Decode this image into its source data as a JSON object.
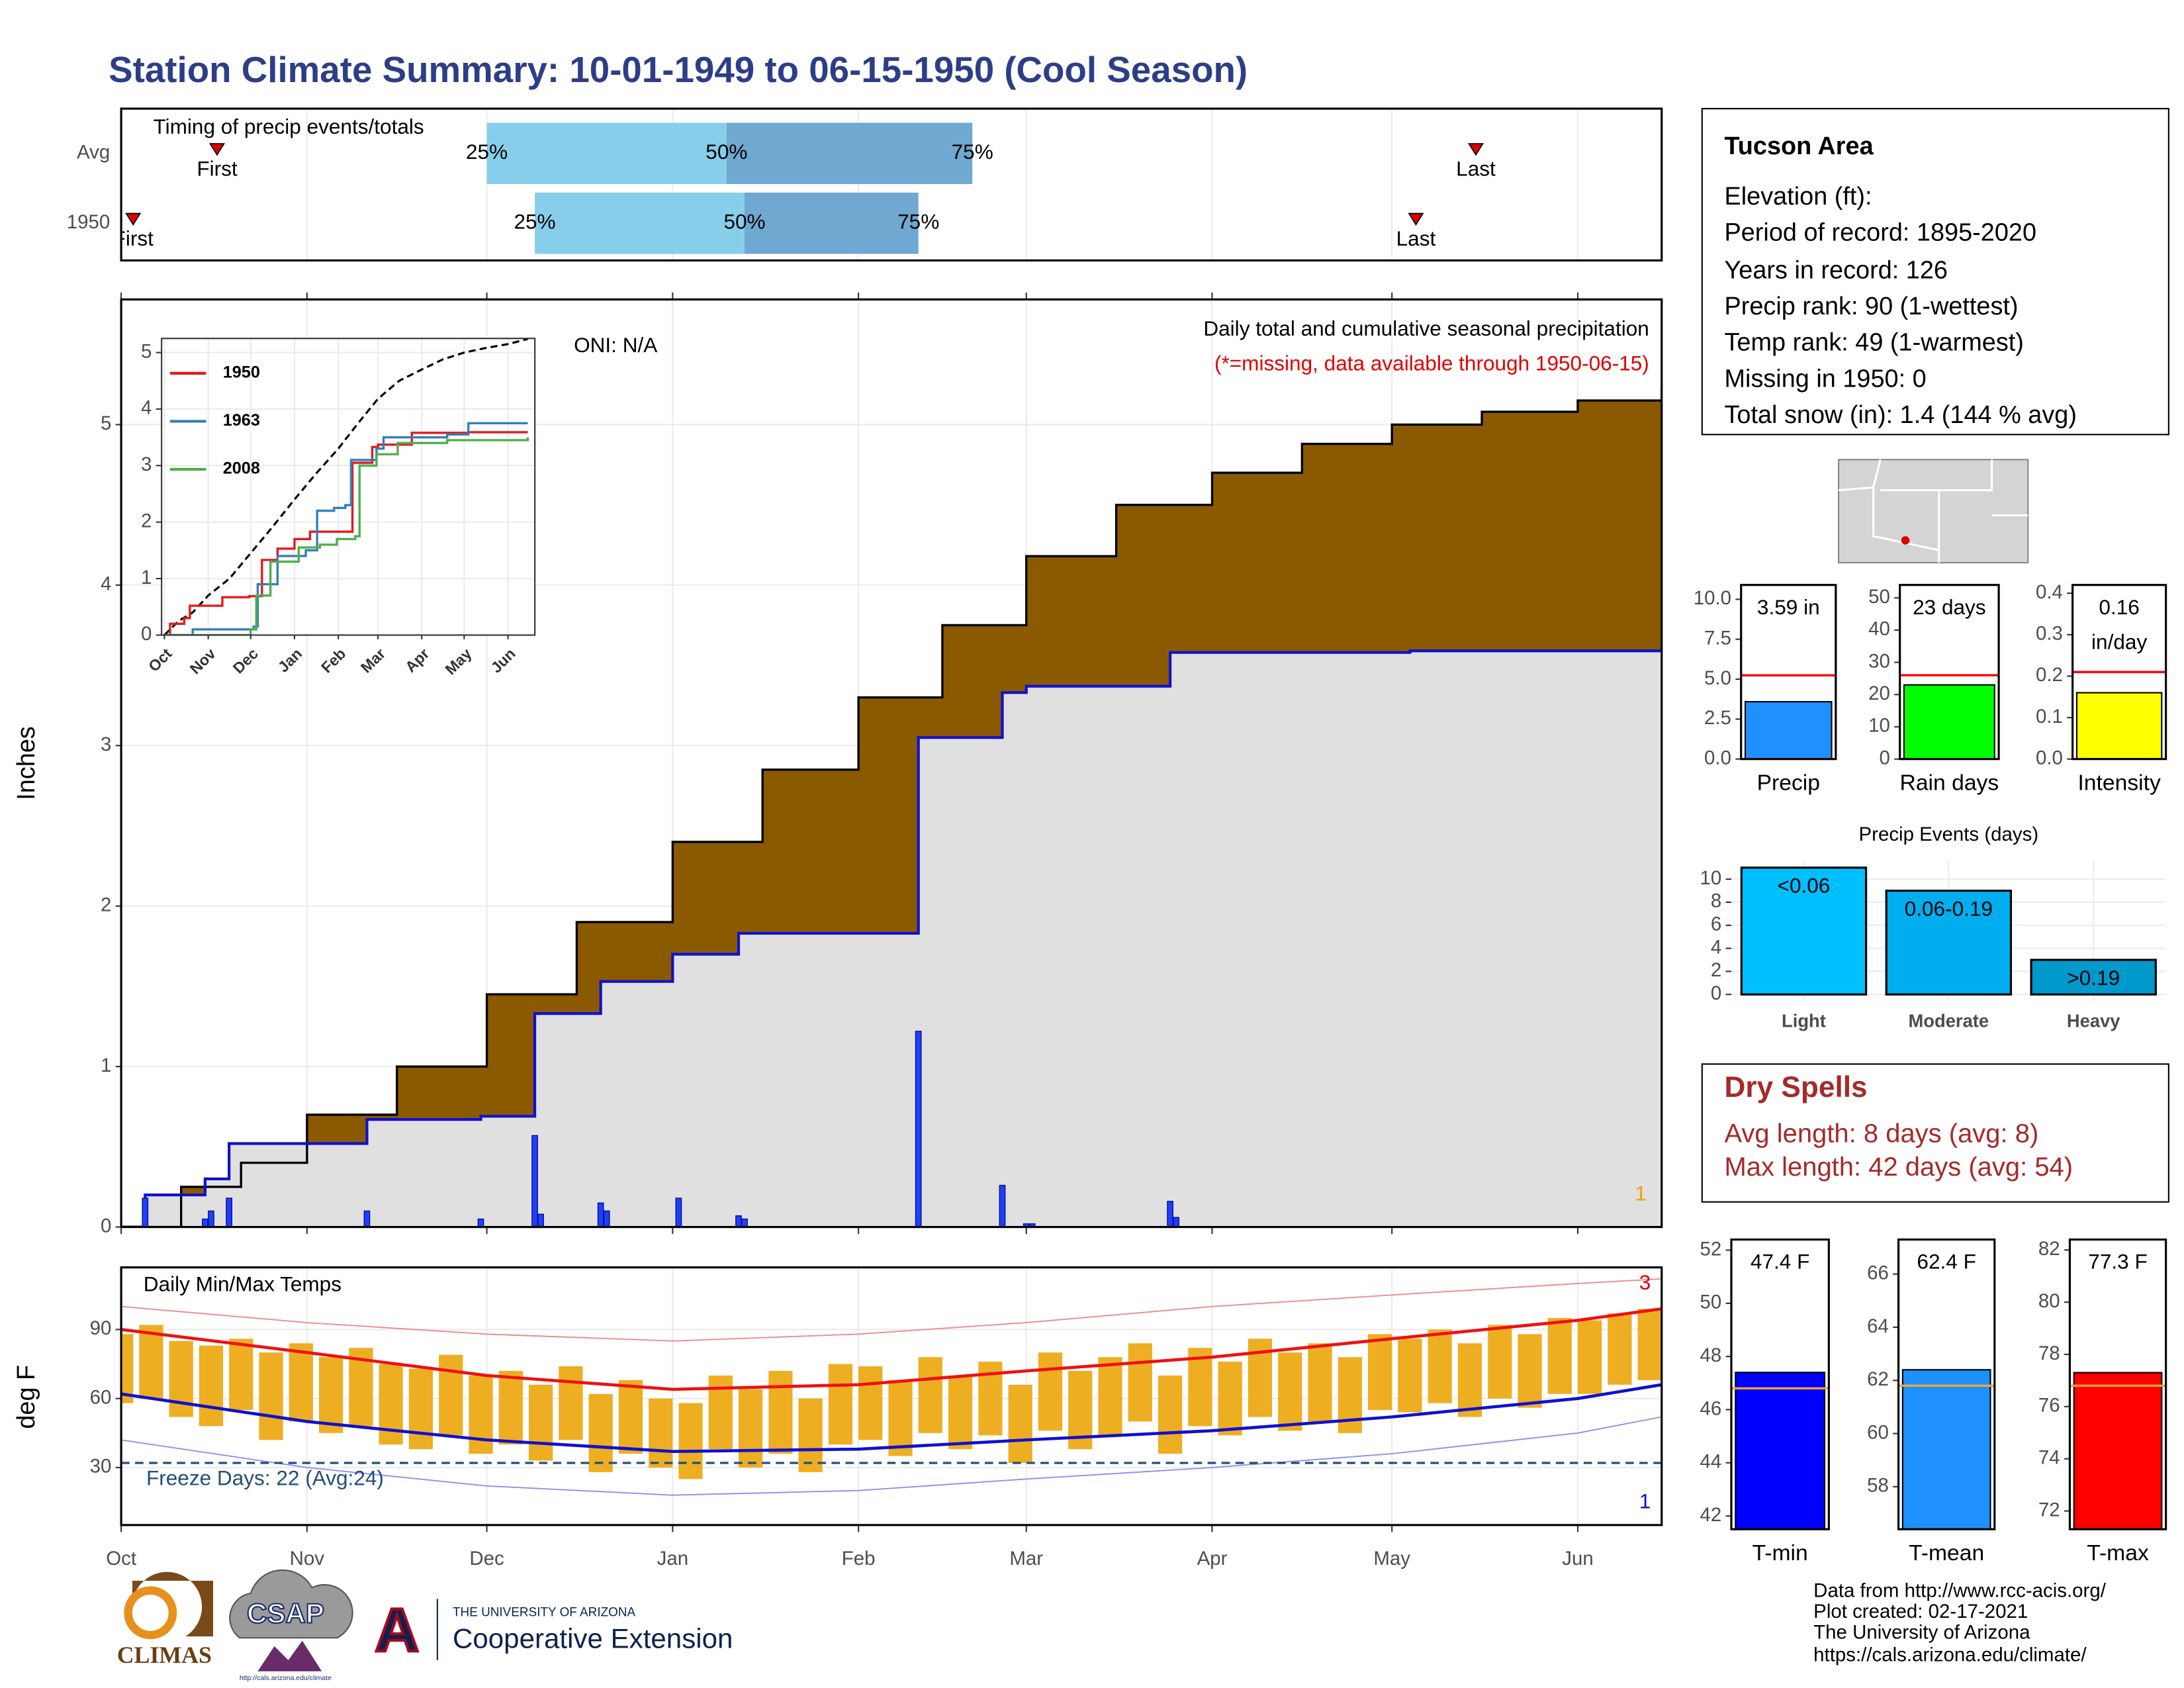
{
  "header": {
    "title": "Station Climate Summary: 10-01-1949 to 06-15-1950 (Cool Season)"
  },
  "info": {
    "title": "Tucson Area",
    "lines": [
      "Elevation (ft):",
      "Period of record: 1895-2020",
      "Years in record: 126",
      "Precip rank: 90 (1-wettest)",
      "Temp rank: 49 (1-warmest)",
      "Missing in 1950: 0",
      "Total snow (in): 1.4 (144 % avg)"
    ]
  },
  "dry_spells": {
    "title": "Dry Spells",
    "lines": [
      "Avg length: 8 days (avg: 8)",
      "Max length: 42 days (avg: 54)"
    ]
  },
  "footer": {
    "lines": [
      "Data from http://www.rcc-acis.org/",
      "Plot created: 02-17-2021",
      "The University of Arizona",
      "https://cals.arizona.edu/climate/"
    ],
    "logos": [
      "CLIMAS",
      "CSAP",
      "http://cals.arizona.edu/climate",
      "A",
      "THE UNIVERSITY OF ARIZONA",
      "Cooperative Extension"
    ]
  },
  "chart_data": [
    {
      "type": "timing",
      "title": "Timing of precip events/totals",
      "quantile_labels": [
        "25%",
        "50%",
        "75%"
      ],
      "colors": [
        "#87ceeb",
        "#6fa8d0"
      ],
      "marker_color": "#e00000",
      "rows": [
        {
          "label": "Avg",
          "first": 16,
          "first_label": "First",
          "q25": 61,
          "q50": 101,
          "q75": 142,
          "last": 226,
          "last_label": "Last"
        },
        {
          "label": "1950",
          "first": 2,
          "first_label": "First",
          "q25": 69,
          "q50": 104,
          "q75": 133,
          "last": 216,
          "last_label": "Last"
        }
      ]
    },
    {
      "type": "cumulative",
      "title": "Daily total and cumulative seasonal precipitation",
      "subtitle": "(*=missing, data available through 1950-06-15)",
      "annotations": [
        "ONI: N/A",
        "1"
      ],
      "ylabel": "Inches",
      "xlim": [
        0,
        257
      ],
      "xticks": [
        0,
        31,
        61,
        92,
        123,
        151,
        182,
        212,
        243
      ],
      "ylim": [
        0,
        5.78
      ],
      "yticks": [
        0,
        1,
        2,
        3,
        4,
        5
      ],
      "grid": true,
      "average_cumulative": {
        "color": "#8b5a00",
        "x": [
          0,
          10,
          20,
          31,
          46,
          61,
          76,
          92,
          107,
          123,
          137,
          151,
          166,
          182,
          197,
          212,
          227,
          243,
          257
        ],
        "values": [
          0,
          0.25,
          0.4,
          0.7,
          1.0,
          1.45,
          1.9,
          2.4,
          2.85,
          3.3,
          3.75,
          4.18,
          4.5,
          4.7,
          4.88,
          5.0,
          5.08,
          5.15,
          5.24
        ]
      },
      "cumulative": {
        "color": "#1010d0",
        "x": [
          0,
          4,
          14,
          18,
          41,
          60,
          69,
          80,
          92,
          103,
          133,
          147,
          151,
          175,
          215,
          257
        ],
        "values": [
          0,
          0.2,
          0.3,
          0.52,
          0.67,
          0.69,
          1.33,
          1.53,
          1.7,
          1.83,
          3.05,
          3.33,
          3.37,
          3.58,
          3.59,
          3.59
        ]
      },
      "daily": {
        "color": "#1f3fff",
        "x": [
          4,
          14,
          15,
          18,
          41,
          60,
          69,
          70,
          80,
          81,
          93,
          103,
          104,
          133,
          147,
          151,
          152,
          175,
          176
        ],
        "values": [
          0.18,
          0.05,
          0.1,
          0.18,
          0.1,
          0.05,
          0.57,
          0.08,
          0.15,
          0.1,
          0.18,
          0.07,
          0.05,
          1.22,
          0.26,
          0.02,
          0.02,
          0.16,
          0.06
        ]
      }
    },
    {
      "type": "inset",
      "xlim": [
        -2,
        262
      ],
      "ylim": [
        0,
        5.25
      ],
      "yticks": [
        0,
        1,
        2,
        3,
        4,
        5
      ],
      "xticks": [
        {
          "value": 0,
          "label": "Oct"
        },
        {
          "value": 31,
          "label": "Nov"
        },
        {
          "value": 61,
          "label": "Dec"
        },
        {
          "value": 92,
          "label": "Jan"
        },
        {
          "value": 123,
          "label": "Feb"
        },
        {
          "value": 151,
          "label": "Mar"
        },
        {
          "value": 182,
          "label": "Apr"
        },
        {
          "value": 212,
          "label": "May"
        },
        {
          "value": 243,
          "label": "Jun"
        }
      ],
      "series": [
        {
          "name": "1950",
          "color": "#e41a1c"
        },
        {
          "name": "1963",
          "color": "#377eb8",
          "x": [
            0,
            20,
            63,
            66,
            80,
            100,
            108,
            120,
            128,
            132,
            150,
            155,
            200,
            215,
            257
          ],
          "values": [
            0,
            0.1,
            0.15,
            0.9,
            1.4,
            1.5,
            2.2,
            2.25,
            2.3,
            3.1,
            3.3,
            3.5,
            3.55,
            3.75,
            3.75
          ]
        },
        {
          "name": "2008",
          "color": "#4daf4a",
          "x": [
            0,
            61,
            65,
            75,
            95,
            110,
            122,
            135,
            138,
            150,
            165,
            200,
            257
          ],
          "values": [
            0,
            0.1,
            0.7,
            1.3,
            1.55,
            1.6,
            1.7,
            1.75,
            3.0,
            3.2,
            3.4,
            3.45,
            3.5
          ]
        }
      ]
    },
    {
      "type": "temperature",
      "title": "Daily Min/Max Temps",
      "ylabel": "deg F",
      "annotation": "Freeze Days: 22 (Avg:24)",
      "corner_labels": [
        "3",
        "1"
      ],
      "freeze_line": 32,
      "bar_color": "#eeae22",
      "xlim": [
        0,
        257
      ],
      "xticks": [
        {
          "value": 0,
          "label": "Oct"
        },
        {
          "value": 31,
          "label": "Nov"
        },
        {
          "value": 61,
          "label": "Dec"
        },
        {
          "value": 92,
          "label": "Jan"
        },
        {
          "value": 123,
          "label": "Feb"
        },
        {
          "value": 151,
          "label": "Mar"
        },
        {
          "value": 182,
          "label": "Apr"
        },
        {
          "value": 212,
          "label": "May"
        },
        {
          "value": 243,
          "label": "Jun"
        }
      ],
      "ylim": [
        5,
        117
      ],
      "yticks": [
        30,
        60,
        90
      ],
      "grid": true,
      "x": [
        0,
        5,
        10,
        15,
        20,
        25,
        30,
        35,
        40,
        45,
        50,
        55,
        60,
        65,
        70,
        75,
        80,
        85,
        90,
        95,
        100,
        105,
        110,
        115,
        120,
        125,
        130,
        135,
        140,
        145,
        150,
        155,
        160,
        165,
        170,
        175,
        180,
        185,
        190,
        195,
        200,
        205,
        210,
        215,
        220,
        225,
        230,
        235,
        240,
        245,
        250,
        255
      ],
      "daily_max": [
        88,
        92,
        85,
        83,
        86,
        80,
        84,
        78,
        82,
        75,
        73,
        79,
        70,
        72,
        66,
        74,
        62,
        68,
        60,
        58,
        70,
        64,
        72,
        60,
        75,
        74,
        68,
        78,
        70,
        76,
        66,
        80,
        72,
        78,
        84,
        70,
        82,
        76,
        86,
        80,
        84,
        78,
        88,
        86,
        90,
        84,
        92,
        88,
        95,
        94,
        97,
        99
      ],
      "daily_min": [
        58,
        60,
        52,
        48,
        55,
        42,
        50,
        45,
        48,
        40,
        38,
        44,
        36,
        40,
        33,
        42,
        28,
        36,
        30,
        25,
        38,
        30,
        36,
        28,
        40,
        42,
        35,
        45,
        38,
        44,
        32,
        46,
        38,
        44,
        50,
        36,
        48,
        44,
        52,
        46,
        50,
        45,
        55,
        54,
        58,
        52,
        60,
        56,
        62,
        62,
        66,
        68
      ],
      "line_x": [
        0,
        31,
        61,
        92,
        123,
        151,
        182,
        212,
        243,
        257
      ],
      "avg_max": {
        "color": "#ee1111",
        "values": [
          90,
          80,
          70,
          64,
          66,
          72,
          78,
          86,
          94,
          99
        ]
      },
      "avg_min": {
        "color": "#1010d0",
        "values": [
          62,
          50,
          42,
          37,
          38,
          42,
          46,
          52,
          60,
          66
        ]
      },
      "record_high": {
        "color": "#f08a8a",
        "values": [
          100,
          93,
          88,
          85,
          88,
          93,
          100,
          105,
          110,
          112
        ]
      },
      "record_low": {
        "color": "#8f8fef",
        "values": [
          42,
          30,
          22,
          18,
          20,
          25,
          30,
          36,
          45,
          52
        ]
      }
    },
    {
      "type": "bar-avg",
      "categories": [
        "Precip"
      ],
      "values": [
        3.59
      ],
      "value_labels": [
        "3.59 in"
      ],
      "average": 5.24,
      "color": "#1e90ff",
      "avg_color": "#ff0000",
      "ylim": [
        0,
        10.9
      ],
      "yticks": [
        {
          "value": 0,
          "label": "0.0"
        },
        {
          "value": 2.5,
          "label": "2.5"
        },
        {
          "value": 5,
          "label": "5.0"
        },
        {
          "value": 7.5,
          "label": "7.5"
        },
        {
          "value": 10,
          "label": "10.0"
        }
      ]
    },
    {
      "type": "bar-avg",
      "categories": [
        "Rain days"
      ],
      "values": [
        23
      ],
      "value_labels": [
        "23 days"
      ],
      "average": 26,
      "color": "#00ff00",
      "avg_color": "#ff0000",
      "ylim": [
        0,
        54
      ],
      "yticks": [
        0,
        10,
        20,
        30,
        40,
        50
      ]
    },
    {
      "type": "bar-avg",
      "categories": [
        "Intensity"
      ],
      "values": [
        0.16
      ],
      "value_labels": [
        "0.16"
      ],
      "unit_label": "in/day",
      "average": 0.21,
      "color": "#ffff00",
      "avg_color": "#ff0000",
      "ylim": [
        0,
        0.42
      ],
      "yticks": [
        {
          "value": 0,
          "label": "0.0"
        },
        {
          "value": 0.1,
          "label": "0.1"
        },
        {
          "value": 0.2,
          "label": "0.2"
        },
        {
          "value": 0.3,
          "label": "0.3"
        },
        {
          "value": 0.4,
          "label": "0.4"
        }
      ]
    },
    {
      "type": "bar",
      "title": "Precip Events (days)",
      "categories": [
        "Light",
        "Moderate",
        "Heavy"
      ],
      "values": [
        11,
        9,
        3
      ],
      "value_labels": [
        "<0.06",
        "0.06-0.19",
        ">0.19"
      ],
      "colors": [
        "#00bfff",
        "#00aeef",
        "#0099cc"
      ],
      "ylim": [
        -0.6,
        11.6
      ],
      "yticks": [
        0,
        2,
        4,
        6,
        8,
        10
      ],
      "grid": true
    },
    {
      "type": "bar-avg",
      "categories": [
        "T-min"
      ],
      "values": [
        47.4
      ],
      "value_labels": [
        "47.4 F"
      ],
      "average": 46.8,
      "color": "#0000ff",
      "avg_color": "#f0a830",
      "ylim": [
        41.5,
        52.4
      ],
      "yticks": [
        42,
        44,
        46,
        48,
        50,
        52
      ]
    },
    {
      "type": "bar-avg",
      "categories": [
        "T-mean"
      ],
      "values": [
        62.4
      ],
      "value_labels": [
        "62.4 F"
      ],
      "average": 61.8,
      "color": "#1e90ff",
      "avg_color": "#f0a830",
      "ylim": [
        56.4,
        67.3
      ],
      "yticks": [
        58,
        60,
        62,
        64,
        66
      ]
    },
    {
      "type": "bar-avg",
      "categories": [
        "T-max"
      ],
      "values": [
        77.3
      ],
      "value_labels": [
        "77.3 F"
      ],
      "average": 76.8,
      "color": "#ff0000",
      "avg_color": "#f0a830",
      "ylim": [
        71.3,
        82.4
      ],
      "yticks": [
        72,
        74,
        76,
        78,
        80,
        82
      ]
    }
  ]
}
